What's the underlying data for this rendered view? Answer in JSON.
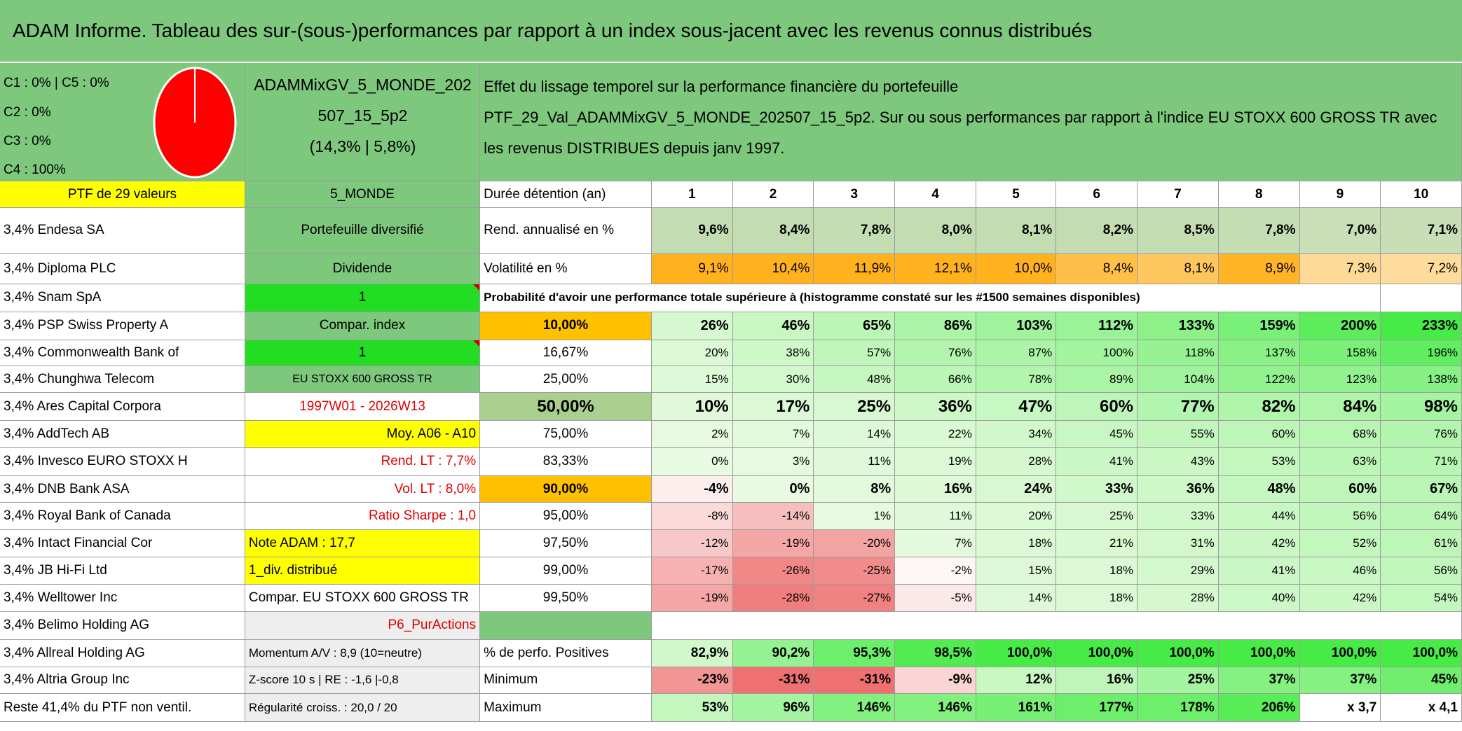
{
  "header": {
    "title": "ADAM Informe. Tableau des sur-(sous-)performances par rapport à un index sous-jacent avec les revenus connus distribués"
  },
  "info": {
    "legend": [
      "C1 : 0% | C5 : 0%",
      "C2 : 0%",
      "C3 : 0%",
      "C4 : 100%"
    ],
    "portfolio_name": "ADAMMixGV_5_MONDE_202507_15_5p2",
    "portfolio_stats": "(14,3% | 5,8%)",
    "description": [
      "Effet du lissage temporel sur la performance financière du portefeuille",
      "PTF_29_Val_ADAMMixGV_5_MONDE_202507_15_5p2. Sur ou sous performances par rapport à l'indice EU STOXX 600 GROSS TR avec les revenus DISTRIBUES depuis janv 1997."
    ]
  },
  "holdings": {
    "header": "PTF de 29 valeurs",
    "rows": [
      "3,4% Endesa SA",
      "3,4% Diploma PLC",
      "3,4% Snam SpA",
      "3,4% PSP Swiss Property A",
      "3,4% Commonwealth Bank of",
      "3,4% Chunghwa Telecom",
      "3,4% Ares Capital Corpora",
      "3,4% AddTech AB",
      "3,4% Invesco EURO STOXX H",
      "3,4% DNB Bank ASA",
      "3,4% Royal Bank of Canada",
      "3,4% Intact Financial Cor",
      "3,4% JB Hi-Fi Ltd",
      "3,4% Welltower Inc",
      "3,4% Belimo Holding AG",
      "3,4% Allreal Holding AG",
      "3,4% Altria Group Inc",
      "Reste 41,4% du PTF non ventil."
    ]
  },
  "side_panel": [
    "5_MONDE",
    "Portefeuille diversifié",
    "Dividende",
    "1",
    "Compar. index",
    "1",
    "EU STOXX 600 GROSS TR",
    "1997W01 - 2026W13",
    "Moy. A06 - A10",
    "Rend. LT : 7,7%",
    "Vol. LT : 8,0%",
    "Ratio Sharpe : 1,0",
    "Note ADAM : 17,7",
    "1_div. distribué",
    "Compar. EU STOXX 600 GROSS TR",
    "P6_PurActions",
    "Momentum A/V : 8,9 (10=neutre)",
    "Z-score 10 s | RE : -1,6 |-0,8",
    "Régularité croiss. : 20,0 / 20"
  ],
  "performance": {
    "header_label": "Durée détention (an)",
    "years": [
      1,
      2,
      3,
      4,
      5,
      6,
      7,
      8,
      9,
      10
    ],
    "annualized": {
      "label": "Rend. annualisé en %",
      "values": [
        "9,6%",
        "8,4%",
        "7,8%",
        "8,0%",
        "8,1%",
        "8,2%",
        "8,5%",
        "7,8%",
        "7,0%",
        "7,1%"
      ]
    },
    "volatility": {
      "label": "Volatilité en %",
      "values": [
        "9,1%",
        "10,4%",
        "11,9%",
        "12,1%",
        "10,0%",
        "8,4%",
        "8,1%",
        "8,9%",
        "7,3%",
        "7,2%"
      ]
    },
    "probability_title": "Probabilité d'avoir une performance totale supérieure à (histogramme constaté sur les #1500 semaines disponibles)",
    "probability_rows": [
      {
        "threshold": "10,00%",
        "values": [
          "26%",
          "46%",
          "65%",
          "86%",
          "103%",
          "112%",
          "133%",
          "159%",
          "200%",
          "233%"
        ]
      },
      {
        "threshold": "16,67%",
        "values": [
          "20%",
          "38%",
          "57%",
          "76%",
          "87%",
          "100%",
          "118%",
          "137%",
          "158%",
          "196%"
        ]
      },
      {
        "threshold": "25,00%",
        "values": [
          "15%",
          "30%",
          "48%",
          "66%",
          "78%",
          "89%",
          "104%",
          "122%",
          "123%",
          "138%"
        ]
      },
      {
        "threshold": "50,00%",
        "values": [
          "10%",
          "17%",
          "25%",
          "36%",
          "47%",
          "60%",
          "77%",
          "82%",
          "84%",
          "98%"
        ]
      },
      {
        "threshold": "75,00%",
        "values": [
          "2%",
          "7%",
          "14%",
          "22%",
          "34%",
          "45%",
          "55%",
          "60%",
          "68%",
          "76%"
        ]
      },
      {
        "threshold": "83,33%",
        "values": [
          "0%",
          "3%",
          "11%",
          "19%",
          "28%",
          "41%",
          "43%",
          "53%",
          "63%",
          "71%"
        ]
      },
      {
        "threshold": "90,00%",
        "values": [
          "-4%",
          "0%",
          "8%",
          "16%",
          "24%",
          "33%",
          "36%",
          "48%",
          "60%",
          "67%"
        ]
      },
      {
        "threshold": "95,00%",
        "values": [
          "-8%",
          "-14%",
          "1%",
          "11%",
          "20%",
          "25%",
          "33%",
          "44%",
          "56%",
          "64%"
        ]
      },
      {
        "threshold": "97,50%",
        "values": [
          "-12%",
          "-19%",
          "-20%",
          "7%",
          "18%",
          "21%",
          "31%",
          "42%",
          "52%",
          "61%"
        ]
      },
      {
        "threshold": "99,00%",
        "values": [
          "-17%",
          "-26%",
          "-25%",
          "-2%",
          "15%",
          "18%",
          "29%",
          "41%",
          "46%",
          "56%"
        ]
      },
      {
        "threshold": "99,50%",
        "values": [
          "-19%",
          "-28%",
          "-27%",
          "-5%",
          "14%",
          "18%",
          "28%",
          "40%",
          "42%",
          "54%"
        ]
      }
    ],
    "stats": [
      {
        "label": "% de perfo. Positives",
        "values": [
          "82,9%",
          "90,2%",
          "95,3%",
          "98,5%",
          "100,0%",
          "100,0%",
          "100,0%",
          "100,0%",
          "100,0%",
          "100,0%"
        ]
      },
      {
        "label": "Minimum",
        "values": [
          "-23%",
          "-31%",
          "-31%",
          "-9%",
          "12%",
          "16%",
          "25%",
          "37%",
          "37%",
          "45%"
        ]
      },
      {
        "label": "Maximum",
        "values": [
          "53%",
          "96%",
          "146%",
          "146%",
          "161%",
          "177%",
          "178%",
          "206%",
          "x 3,7",
          "x 4,1"
        ]
      }
    ]
  }
}
